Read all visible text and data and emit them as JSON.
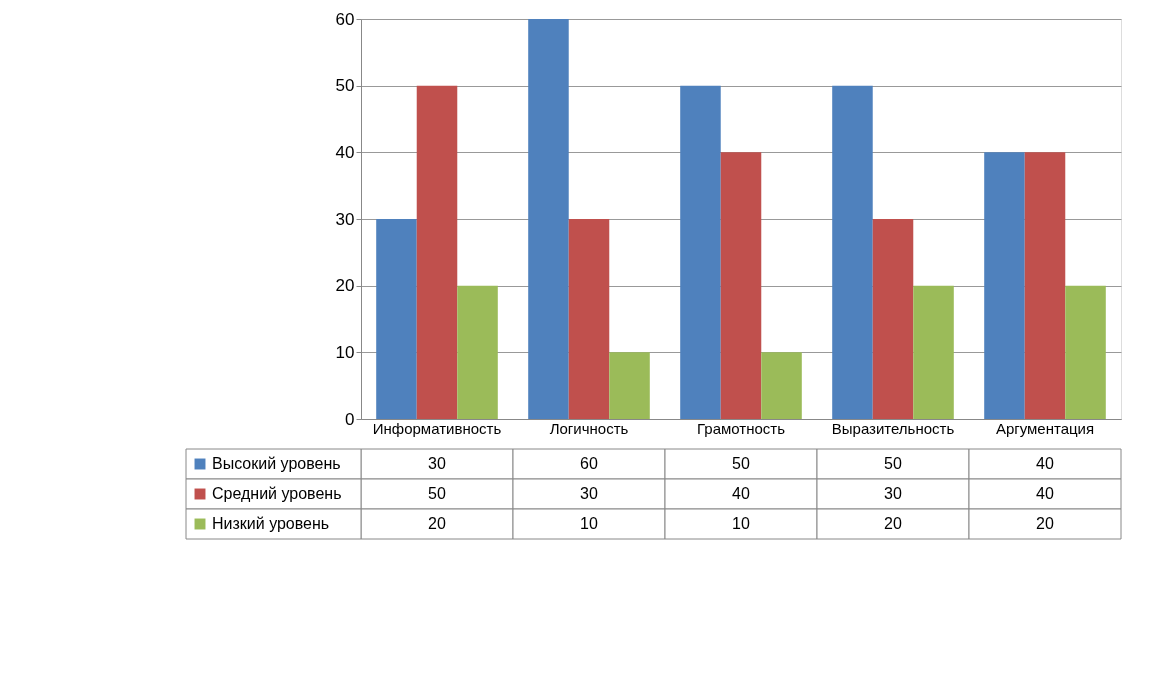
{
  "chart_data": {
    "type": "bar",
    "categories": [
      "Информативность",
      "Логичность",
      "Грамотность",
      "Выразительность",
      "Аргументация"
    ],
    "series": [
      {
        "name": "Высокий уровень",
        "color": "#4f81bd",
        "values": [
          30,
          60,
          50,
          50,
          40
        ]
      },
      {
        "name": "Средний уровень",
        "color": "#c0504d",
        "values": [
          50,
          30,
          40,
          30,
          40
        ]
      },
      {
        "name": "Низкий уровень",
        "color": "#9bbb59",
        "values": [
          20,
          10,
          10,
          20,
          20
        ]
      }
    ],
    "ylim": [
      0,
      60
    ],
    "yticks": [
      0,
      10,
      20,
      30,
      40,
      50,
      60
    ],
    "grid": "y",
    "legend": "bottom",
    "data_labels": true
  }
}
